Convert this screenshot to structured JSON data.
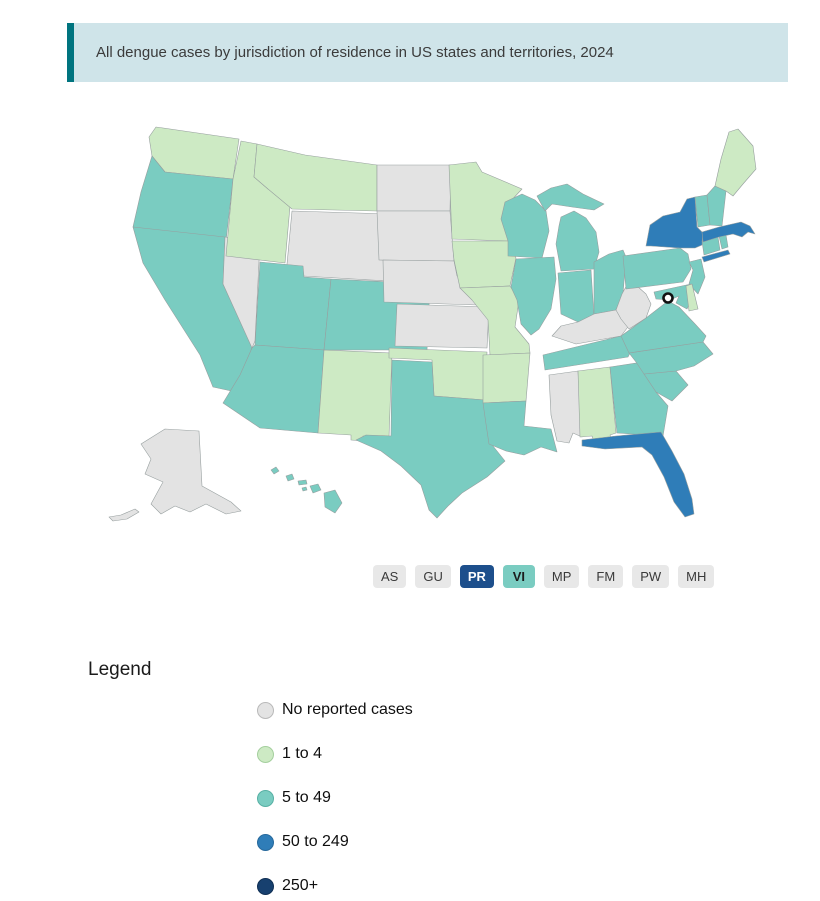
{
  "banner": {
    "title": "All dengue cases by jurisdiction of residence in US states and territories, 2024",
    "bg": "#cfe4e9",
    "accent": "#00747f",
    "text_color": "#3b3b3b"
  },
  "chart_data": {
    "type": "choropleth",
    "title": "All dengue cases by jurisdiction of residence in US states and territories, 2024",
    "legend_title": "Legend",
    "legend_position": "bottom-left",
    "categories": [
      {
        "key": "none",
        "label": "No reported cases",
        "color": "#e3e3e3",
        "border": "#b9b9b9"
      },
      {
        "key": "1-4",
        "label": "1 to 4",
        "color": "#cdeac4",
        "border": "#a4cf9d"
      },
      {
        "key": "5-49",
        "label": "5 to 49",
        "color": "#7accc1",
        "border": "#57b0a4"
      },
      {
        "key": "50-249",
        "label": "50 to 249",
        "color": "#2f7db8",
        "border": "#27699c"
      },
      {
        "key": "250+",
        "label": "250+",
        "color": "#17406f",
        "border": "#102f54"
      }
    ],
    "states": [
      {
        "id": "WA",
        "name": "Washington",
        "category": "1-4"
      },
      {
        "id": "OR",
        "name": "Oregon",
        "category": "5-49"
      },
      {
        "id": "CA",
        "name": "California",
        "category": "5-49"
      },
      {
        "id": "NV",
        "name": "Nevada",
        "category": "none"
      },
      {
        "id": "ID",
        "name": "Idaho",
        "category": "1-4"
      },
      {
        "id": "MT",
        "name": "Montana",
        "category": "1-4"
      },
      {
        "id": "WY",
        "name": "Wyoming",
        "category": "none"
      },
      {
        "id": "UT",
        "name": "Utah",
        "category": "5-49"
      },
      {
        "id": "CO",
        "name": "Colorado",
        "category": "5-49"
      },
      {
        "id": "AZ",
        "name": "Arizona",
        "category": "5-49"
      },
      {
        "id": "NM",
        "name": "New Mexico",
        "category": "1-4"
      },
      {
        "id": "ND",
        "name": "North Dakota",
        "category": "none"
      },
      {
        "id": "SD",
        "name": "South Dakota",
        "category": "none"
      },
      {
        "id": "NE",
        "name": "Nebraska",
        "category": "none"
      },
      {
        "id": "KS",
        "name": "Kansas",
        "category": "none"
      },
      {
        "id": "OK",
        "name": "Oklahoma",
        "category": "1-4"
      },
      {
        "id": "TX",
        "name": "Texas",
        "category": "5-49"
      },
      {
        "id": "MN",
        "name": "Minnesota",
        "category": "1-4"
      },
      {
        "id": "IA",
        "name": "Iowa",
        "category": "1-4"
      },
      {
        "id": "MO",
        "name": "Missouri",
        "category": "1-4"
      },
      {
        "id": "AR",
        "name": "Arkansas",
        "category": "1-4"
      },
      {
        "id": "LA",
        "name": "Louisiana",
        "category": "5-49"
      },
      {
        "id": "WI",
        "name": "Wisconsin",
        "category": "5-49"
      },
      {
        "id": "MI",
        "name": "Michigan",
        "category": "5-49"
      },
      {
        "id": "IL",
        "name": "Illinois",
        "category": "5-49"
      },
      {
        "id": "IN",
        "name": "Indiana",
        "category": "5-49"
      },
      {
        "id": "OH",
        "name": "Ohio",
        "category": "5-49"
      },
      {
        "id": "KY",
        "name": "Kentucky",
        "category": "none"
      },
      {
        "id": "TN",
        "name": "Tennessee",
        "category": "5-49"
      },
      {
        "id": "MS",
        "name": "Mississippi",
        "category": "none"
      },
      {
        "id": "AL",
        "name": "Alabama",
        "category": "1-4"
      },
      {
        "id": "GA",
        "name": "Georgia",
        "category": "5-49"
      },
      {
        "id": "FL",
        "name": "Florida",
        "category": "50-249"
      },
      {
        "id": "SC",
        "name": "South Carolina",
        "category": "5-49"
      },
      {
        "id": "NC",
        "name": "North Carolina",
        "category": "5-49"
      },
      {
        "id": "VA",
        "name": "Virginia",
        "category": "5-49"
      },
      {
        "id": "WV",
        "name": "West Virginia",
        "category": "none"
      },
      {
        "id": "PA",
        "name": "Pennsylvania",
        "category": "5-49"
      },
      {
        "id": "NY",
        "name": "New York",
        "category": "50-249"
      },
      {
        "id": "NJ",
        "name": "New Jersey",
        "category": "5-49"
      },
      {
        "id": "MD",
        "name": "Maryland",
        "category": "5-49"
      },
      {
        "id": "DE",
        "name": "Delaware",
        "category": "1-4"
      },
      {
        "id": "CT",
        "name": "Connecticut",
        "category": "5-49"
      },
      {
        "id": "RI",
        "name": "Rhode Island",
        "category": "5-49"
      },
      {
        "id": "MA",
        "name": "Massachusetts",
        "category": "50-249"
      },
      {
        "id": "VT",
        "name": "Vermont",
        "category": "5-49"
      },
      {
        "id": "NH",
        "name": "New Hampshire",
        "category": "5-49"
      },
      {
        "id": "ME",
        "name": "Maine",
        "category": "1-4"
      },
      {
        "id": "AK",
        "name": "Alaska",
        "category": "none"
      },
      {
        "id": "HI",
        "name": "Hawaii",
        "category": "5-49"
      }
    ],
    "dc_marker": {
      "id": "DC",
      "name": "District of Columbia",
      "style": "black-ring"
    },
    "territories": [
      {
        "code": "AS",
        "bg": "#e8e8e8",
        "text": "#3a3a3a",
        "bold": false
      },
      {
        "code": "GU",
        "bg": "#e8e8e8",
        "text": "#3a3a3a",
        "bold": false
      },
      {
        "code": "PR",
        "bg": "#1d4f8c",
        "text": "#ffffff",
        "bold": true
      },
      {
        "code": "VI",
        "bg": "#7accc1",
        "text": "#1c1c1c",
        "bold": true
      },
      {
        "code": "MP",
        "bg": "#e8e8e8",
        "text": "#3a3a3a",
        "bold": false
      },
      {
        "code": "FM",
        "bg": "#e8e8e8",
        "text": "#3a3a3a",
        "bold": false
      },
      {
        "code": "PW",
        "bg": "#e8e8e8",
        "text": "#3a3a3a",
        "bold": false
      },
      {
        "code": "MH",
        "bg": "#e8e8e8",
        "text": "#3a3a3a",
        "bold": false
      }
    ]
  }
}
